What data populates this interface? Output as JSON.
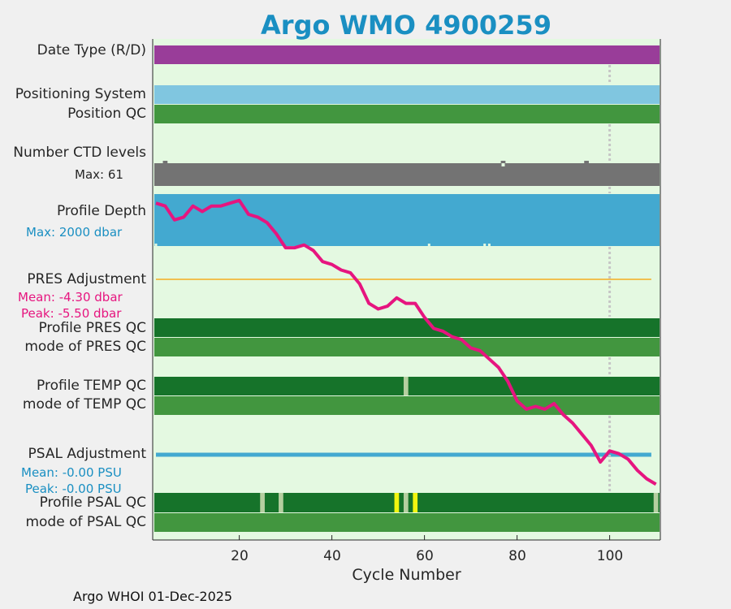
{
  "title": "Argo WMO 4900259",
  "footer": "Argo WHOI 01-Dec-2025",
  "labels": {
    "date_type": "Date Type (R/D)",
    "positioning_system": "Positioning System",
    "position_qc": "Position QC",
    "number_ctd_levels": "Number CTD levels",
    "ctd_max": "Max: 61",
    "profile_depth": "Profile Depth",
    "depth_max": "Max: 2000 dbar",
    "pres_adjustment": "PRES Adjustment",
    "pres_mean": "Mean: -4.30 dbar",
    "pres_peak": "Peak: -5.50 dbar",
    "profile_pres_qc": "Profile PRES QC",
    "mode_pres_qc": "mode of PRES QC",
    "profile_temp_qc": "Profile TEMP QC",
    "mode_temp_qc": "mode of TEMP QC",
    "psal_adjustment": "PSAL Adjustment",
    "psal_mean": "Mean: -0.00 PSU",
    "psal_peak": "Peak: -0.00 PSU",
    "profile_psal_qc": "Profile PSAL QC",
    "mode_psal_qc": "mode of PSAL QC"
  },
  "colors": {
    "bg": "#e4f9e1",
    "date_type": "#993d99",
    "positioning": "#80c6e0",
    "qc_green": "#42963f",
    "qc_dark": "#16732a",
    "qc_light": "#b5cfa0",
    "qc_yellow": "#f1f50f",
    "ctd": "#737373",
    "depth": "#43a9d0",
    "pres_adj": "#f0c050",
    "psal_adj": "#43a9d0",
    "magenta": "#e6157f",
    "dotted": "#c6c6c6"
  },
  "chart_data": {
    "type": "table",
    "title": "Argo WMO 4900259",
    "xlabel": "Cycle Number",
    "ylabel": "",
    "xlim": [
      1,
      110
    ],
    "xticks": [
      20,
      40,
      60,
      80,
      100
    ],
    "cycle_marker": 100,
    "ctd_levels": {
      "max": 61,
      "low_cycles": [
        4,
        77,
        95
      ]
    },
    "profile_depth": {
      "max_dbar": 2000,
      "low_cycles": [
        2,
        61,
        73,
        74
      ]
    },
    "pres_adjustment": {
      "mean_dbar": -4.3,
      "peak_dbar": -5.5,
      "cycle_range": [
        2,
        109
      ]
    },
    "temp_qc": {
      "profile": "A",
      "mode_qc": 1,
      "flagged_cycles": [
        56
      ]
    },
    "psal_adjustment": {
      "mean_psu": -0.0,
      "peak_psu": -0.0,
      "cycle_range": [
        2,
        109
      ]
    },
    "psal_qc": {
      "profile": "A",
      "mode_qc": 1,
      "light_cycles": [
        25,
        29,
        56,
        110
      ],
      "yellow_cycles": [
        54,
        58
      ]
    },
    "trend_line": {
      "name": "temperature trend (unlabeled)",
      "x": [
        2,
        4,
        6,
        8,
        10,
        12,
        14,
        16,
        18,
        20,
        22,
        24,
        26,
        28,
        30,
        32,
        34,
        36,
        38,
        40,
        42,
        44,
        46,
        48,
        50,
        52,
        54,
        56,
        58,
        60,
        62,
        64,
        66,
        68,
        70,
        72,
        74,
        76,
        78,
        80,
        82,
        84,
        86,
        88,
        90,
        92,
        94,
        96,
        98,
        100,
        102,
        104,
        106,
        108,
        110
      ],
      "y": [
        0.31,
        0.3,
        0.25,
        0.26,
        0.3,
        0.28,
        0.3,
        0.3,
        0.31,
        0.32,
        0.27,
        0.26,
        0.24,
        0.2,
        0.15,
        0.15,
        0.16,
        0.14,
        0.1,
        0.09,
        0.07,
        0.06,
        0.02,
        -0.05,
        -0.07,
        -0.06,
        -0.03,
        -0.05,
        -0.05,
        -0.1,
        -0.14,
        -0.15,
        -0.17,
        -0.18,
        -0.21,
        -0.22,
        -0.25,
        -0.28,
        -0.33,
        -0.4,
        -0.43,
        -0.42,
        -0.43,
        -0.41,
        -0.45,
        -0.48,
        -0.52,
        -0.56,
        -0.62,
        -0.58,
        -0.59,
        -0.61,
        -0.65,
        -0.68,
        -0.7
      ],
      "ylim": [
        -0.9,
        0.9
      ]
    }
  }
}
